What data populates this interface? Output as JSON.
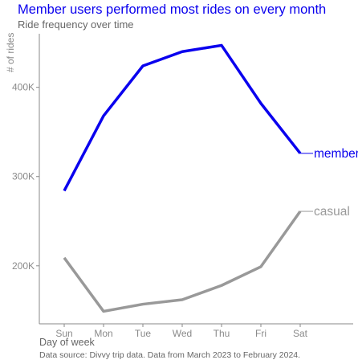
{
  "chart_data": {
    "type": "line",
    "title": "Member users performed most rides on every month",
    "subtitle": "Ride frequency over time",
    "xlabel": "Day of week",
    "ylabel": "# of rides",
    "caption": "Data source: Divvy trip data. Data from March 2023 to February 2024.",
    "categories": [
      "Sun",
      "Mon",
      "Tue",
      "Wed",
      "Thu",
      "Fri",
      "Sat"
    ],
    "ylim": [
      135000,
      460000
    ],
    "yticks": [
      200000,
      300000,
      400000
    ],
    "ytick_labels": [
      "200K",
      "300K",
      "400K"
    ],
    "grid": false,
    "legend": "direct-labels-right",
    "series": [
      {
        "name": "member",
        "color": "#0a00ee",
        "values": [
          284000,
          368000,
          424000,
          440000,
          447000,
          382000,
          326000
        ]
      },
      {
        "name": "casual",
        "color": "#999999",
        "values": [
          209000,
          149000,
          157000,
          162000,
          178000,
          199000,
          261000
        ]
      }
    ]
  }
}
